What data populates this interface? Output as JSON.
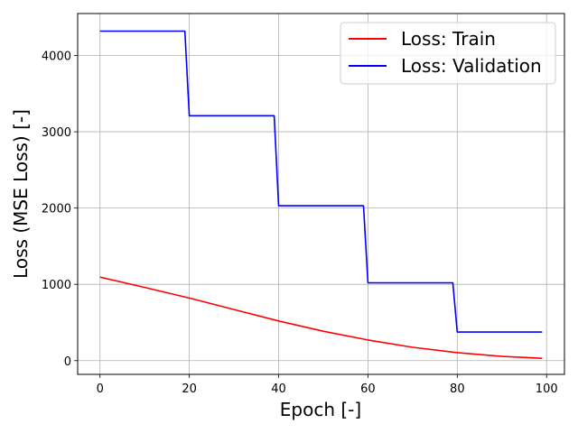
{
  "chart_data": {
    "type": "line",
    "title": "",
    "xlabel": "Epoch [-]",
    "ylabel": "Loss (MSE Loss) [-]",
    "xlim": [
      -5,
      104
    ],
    "ylim": [
      -180,
      4550
    ],
    "xticks": [
      0,
      20,
      40,
      60,
      80,
      100
    ],
    "yticks": [
      0,
      1000,
      2000,
      3000,
      4000
    ],
    "grid": true,
    "legend_position": "top-right",
    "series": [
      {
        "name": "Loss: Train",
        "color": "#ff0000",
        "x": [
          0,
          10,
          20,
          30,
          40,
          50,
          60,
          70,
          80,
          90,
          99
        ],
        "y": [
          1095,
          960,
          820,
          670,
          520,
          385,
          270,
          175,
          105,
          55,
          30
        ]
      },
      {
        "name": "Loss: Validation",
        "color": "#0000ff",
        "x": [
          0,
          19,
          20,
          39,
          40,
          59,
          60,
          79,
          80,
          99
        ],
        "y": [
          4320,
          4320,
          3210,
          3210,
          2030,
          2030,
          1020,
          1020,
          375,
          375
        ]
      }
    ]
  }
}
